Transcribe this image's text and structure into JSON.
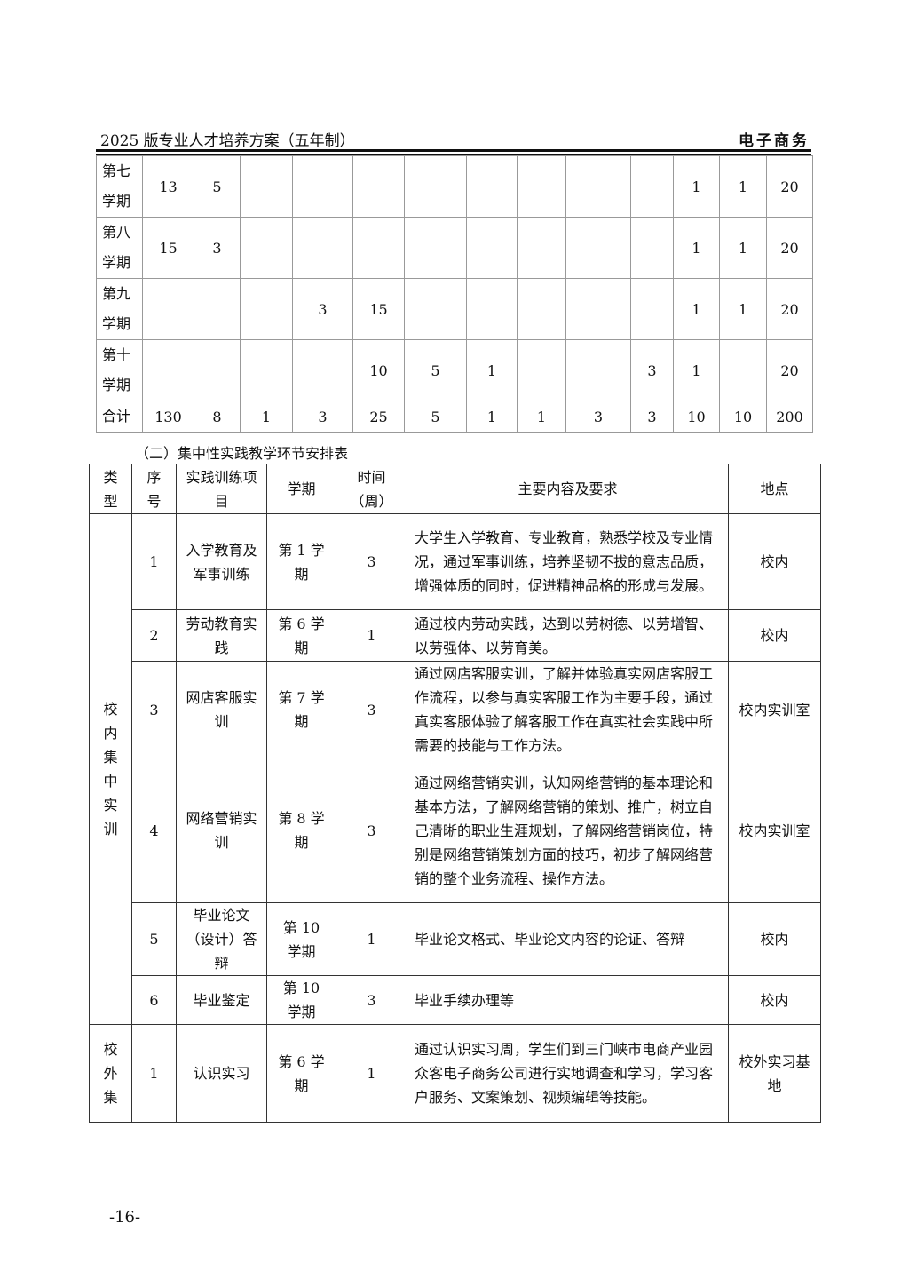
{
  "header": {
    "left": "2025 版专业人才培养方案（五年制）",
    "right": "电子商务"
  },
  "table1": {
    "rows": [
      [
        "第七学期",
        "13",
        "5",
        "",
        "",
        "",
        "",
        "",
        "",
        "",
        "",
        "1",
        "1",
        "20"
      ],
      [
        "第八学期",
        "15",
        "3",
        "",
        "",
        "",
        "",
        "",
        "",
        "",
        "",
        "1",
        "1",
        "20"
      ],
      [
        "第九学期",
        "",
        "",
        "",
        "3",
        "15",
        "",
        "",
        "",
        "",
        "",
        "1",
        "1",
        "20"
      ],
      [
        "第十学期",
        "",
        "",
        "",
        "",
        "10",
        "5",
        "1",
        "",
        "",
        "3",
        "1",
        "",
        "20"
      ]
    ],
    "total": [
      "合计",
      "130",
      "8",
      "1",
      "3",
      "25",
      "5",
      "1",
      "1",
      "3",
      "3",
      "10",
      "10",
      "200"
    ]
  },
  "caption": "（二）集中性实践教学环节安排表",
  "table2": {
    "headers": [
      "类型",
      "序号",
      "实践训练项目",
      "学期",
      "时间（周）",
      "主要内容及要求",
      "地点"
    ],
    "groups": [
      {
        "type": "校内集中实训",
        "rows": [
          [
            "1",
            "入学教育及军事训练",
            "第 1 学期",
            "3",
            "大学生入学教育、专业教育，熟悉学校及专业情况，通过军事训练，培养坚韧不拔的意志品质，增强体质的同时，促进精神品格的形成与发展。",
            "校内"
          ],
          [
            "2",
            "劳动教育实践",
            "第 6 学期",
            "1",
            "通过校内劳动实践，达到以劳树德、以劳增智、 以劳强体、以劳育美。",
            "校内"
          ],
          [
            "3",
            "网店客服实训",
            "第 7 学期",
            "3",
            "通过网店客服实训，了解并体验真实网店客服工作流程，以参与真实客服工作为主要手段，通过真实客服体验了解客服工作在真实社会实践中所需要的技能与工作方法。",
            "校内实训室"
          ],
          [
            "4",
            "网络营销实训",
            "第 8 学期",
            "3",
            "通过网络营销实训，认知网络营销的基本理论和基本方法，了解网络营销的策划、推广，树立自己清晰的职业生涯规划，了解网络营销岗位，特别是网络营销策划方面的技巧，初步了解网络营销的整个业务流程、操作方法。",
            "校内实训室"
          ],
          [
            "5",
            "毕业论文（设计）答辩",
            "第 10 学期",
            "1",
            "毕业论文格式、毕业论文内容的论证、答辩",
            "校内"
          ],
          [
            "6",
            "毕业鉴定",
            "第 10 学期",
            "3",
            "毕业手续办理等",
            "校内"
          ]
        ]
      },
      {
        "type": "校外集",
        "rows": [
          [
            "1",
            "认识实习",
            "第 6 学期",
            "1",
            "通过认识实习周，学生们到三门峡市电商产业园众客电子商务公司进行实地调查和学习，学习客户服务、文案策划、视频编辑等技能。",
            "校外实习基地"
          ]
        ]
      }
    ]
  },
  "page_number": "-16-"
}
